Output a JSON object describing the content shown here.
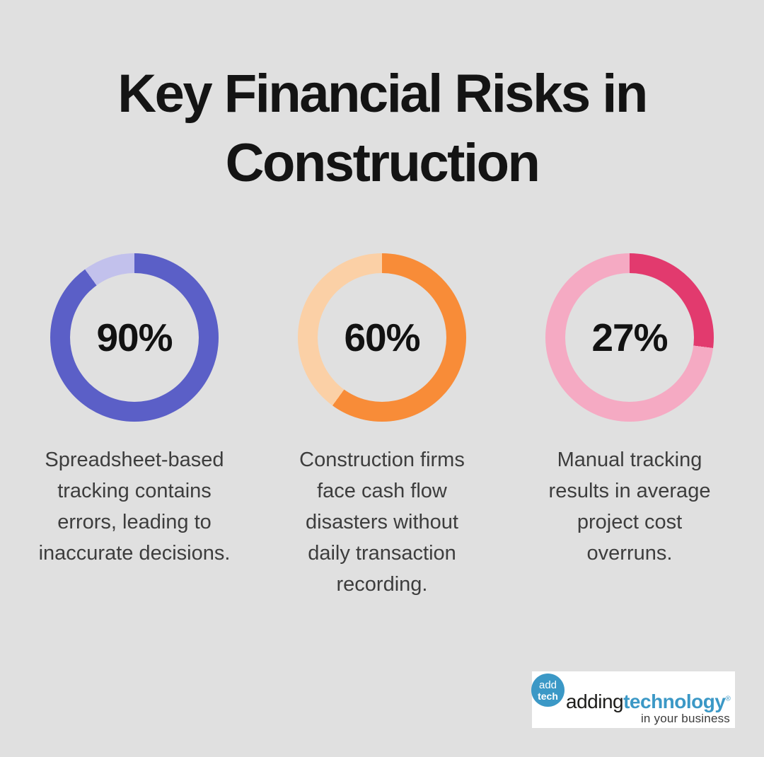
{
  "colors": {
    "page_background": "#e0e0e0",
    "title_text": "#141414",
    "caption_text": "#3d3d3d",
    "percent_text": "#121212",
    "logo_background": "#ffffff",
    "logo_blue": "#3b98c6",
    "logo_dark_text": "#1d1d1b"
  },
  "title": {
    "line1": "Key Financial Risks in",
    "line2": "Construction"
  },
  "chart_data": [
    {
      "type": "pie",
      "variant": "donut",
      "value_percent": 90,
      "center_label": "90%",
      "segment_color": "#5b5fc7",
      "remainder_color": "#c2c1ec",
      "start_angle_deg": 0,
      "direction": "clockwise",
      "caption": "Spreadsheet-based tracking contains errors, leading to inaccurate decisions."
    },
    {
      "type": "pie",
      "variant": "donut",
      "value_percent": 60,
      "center_label": "60%",
      "segment_color": "#f88c38",
      "remainder_color": "#fbd0a6",
      "start_angle_deg": 0,
      "direction": "clockwise",
      "caption": "Construction firms face cash flow disasters without daily transaction recording."
    },
    {
      "type": "pie",
      "variant": "donut",
      "value_percent": 27,
      "center_label": "27%",
      "segment_color": "#e23a6e",
      "remainder_color": "#f5aac3",
      "start_angle_deg": 0,
      "direction": "clockwise",
      "caption": "Manual tracking results in average project cost overruns."
    }
  ],
  "logo": {
    "circle_line1": "add",
    "circle_line2": "tech",
    "name_part1": "adding",
    "name_part2": "technology",
    "registered_mark": "®",
    "tagline": "in your business"
  }
}
